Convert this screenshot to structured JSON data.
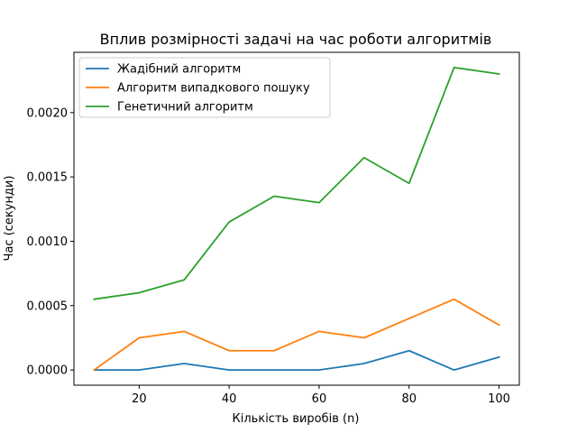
{
  "chart_data": {
    "type": "line",
    "title": "Вплив розмірності задачі на час роботи алгоритмів",
    "xlabel": "Кількість виробів (n)",
    "ylabel": "Час (секунди)",
    "x": [
      10,
      20,
      30,
      40,
      50,
      60,
      70,
      80,
      90,
      100
    ],
    "xlim": [
      5.5,
      104.5
    ],
    "ylim": [
      -0.000118,
      0.002468
    ],
    "xticks": [
      20,
      40,
      60,
      80,
      100
    ],
    "yticks": [
      0.0,
      0.0005,
      0.001,
      0.0015,
      0.002
    ],
    "xtick_labels": [
      "20",
      "40",
      "60",
      "80",
      "100"
    ],
    "ytick_labels": [
      "0.0000",
      "0.0005",
      "0.0010",
      "0.0015",
      "0.0020"
    ],
    "grid": false,
    "legend_position": "top-left",
    "series": [
      {
        "name": "Жадібний алгоритм",
        "color": "#1f77b4",
        "values": [
          0.0,
          0.0,
          5e-05,
          0.0,
          0.0,
          0.0,
          5e-05,
          0.00015,
          0.0,
          0.0001
        ]
      },
      {
        "name": "Алгоритм випадкового пошуку",
        "color": "#ff7f0e",
        "values": [
          0.0,
          0.00025,
          0.0003,
          0.00015,
          0.00015,
          0.0003,
          0.00025,
          0.0004,
          0.00055,
          0.00035
        ]
      },
      {
        "name": "Генетичний алгоритм",
        "color": "#2ca02c",
        "values": [
          0.00055,
          0.0006,
          0.0007,
          0.00115,
          0.00135,
          0.0013,
          0.00165,
          0.00145,
          0.00235,
          0.0023
        ]
      }
    ]
  }
}
